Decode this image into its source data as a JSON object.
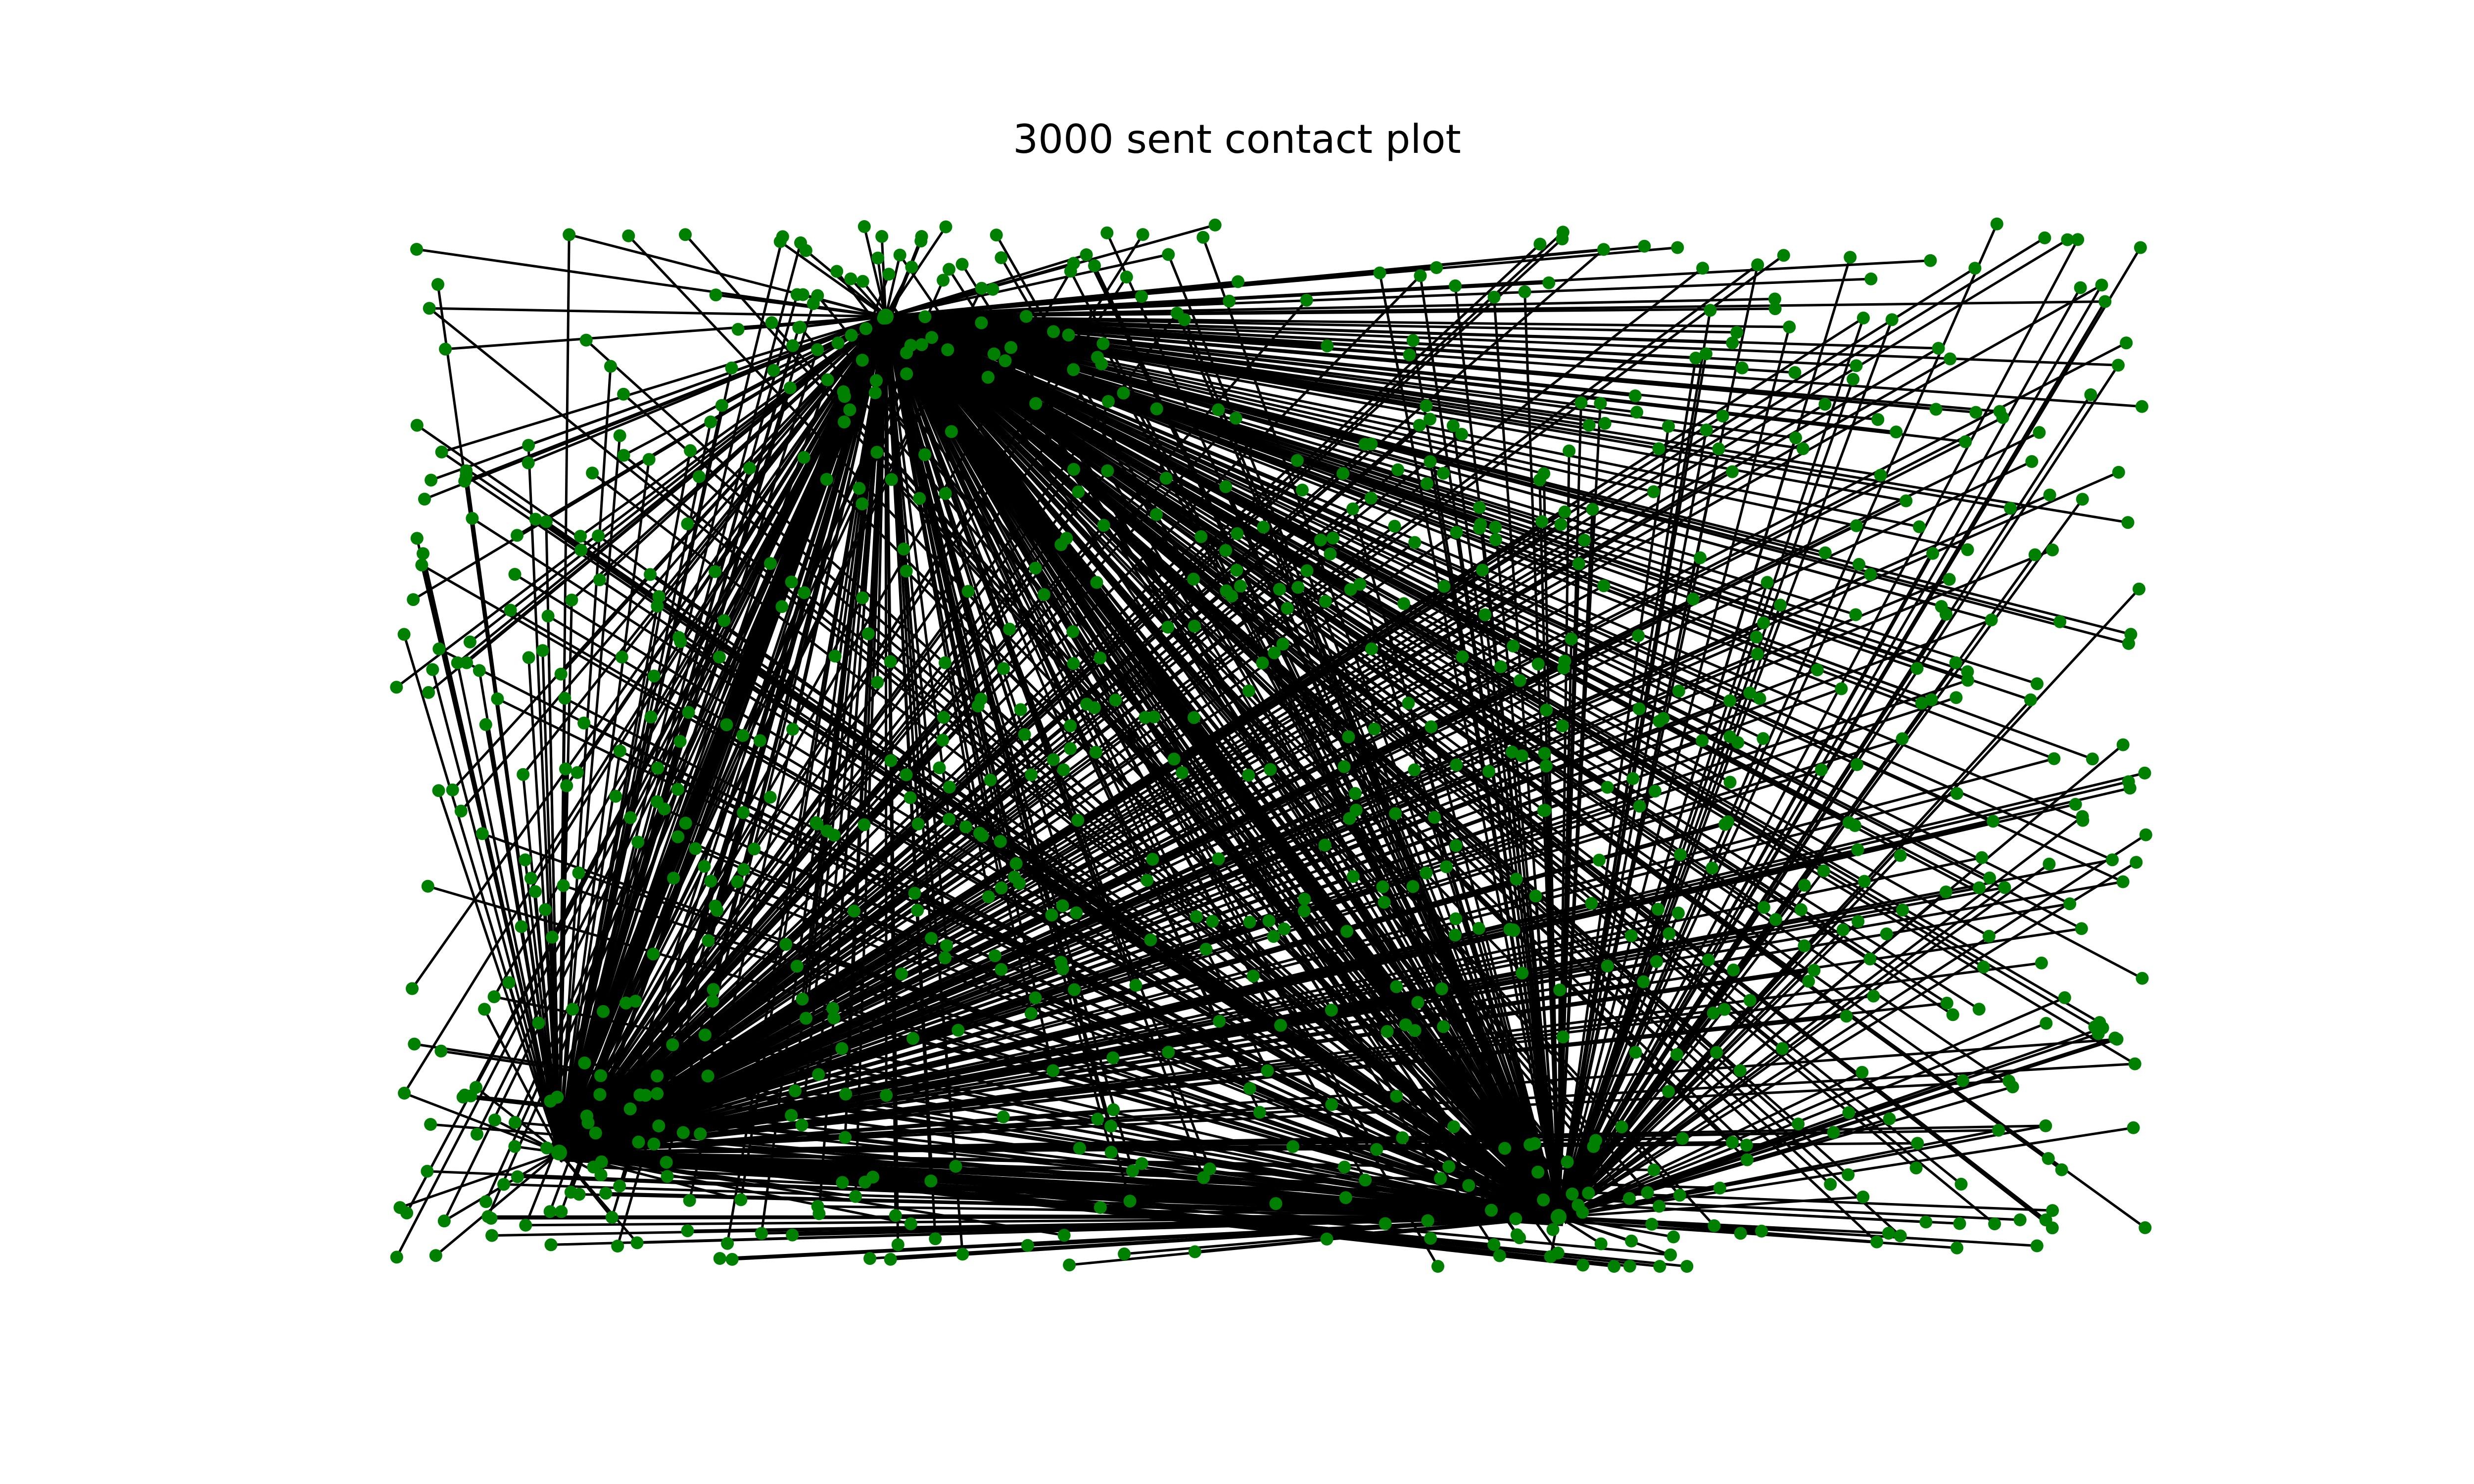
{
  "figure": {
    "title": "3000 sent contact plot"
  },
  "graph": {
    "node_color": "#008000",
    "edge_color": "#000000",
    "background": "#ffffff",
    "hubs": [
      "hub-top",
      "hub-bottom-left",
      "hub-bottom-right"
    ],
    "leaf_count_estimate": 900,
    "layout": "random spatial layout with three high-degree hub nodes"
  }
}
